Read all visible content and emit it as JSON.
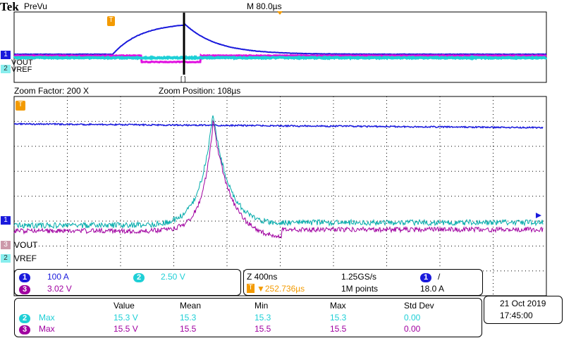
{
  "header": {
    "brand": "Tek",
    "mode": "PreVu",
    "timebase": "M 80.0µs"
  },
  "preview": {
    "ch1_label": "1",
    "vout_label": "VOUT",
    "ch2_label": "2",
    "vref_label": "VREF",
    "trigger_marker": "T",
    "zoom_marker": "[ ]"
  },
  "zoom_info": {
    "factor": "Zoom Factor: 200 X",
    "position": "Zoom Position: 108µs"
  },
  "main": {
    "trigger_marker": "T",
    "ch1_label": "1",
    "ch3_label": "3",
    "vout_label": "VOUT",
    "ch2_label": "2",
    "vref_label": "VREF"
  },
  "channels": [
    {
      "num": "1",
      "scale": "100 A",
      "color": "#1a1adc"
    },
    {
      "num": "2",
      "scale": "2.50 V",
      "color": "#1ecfd6"
    },
    {
      "num": "3",
      "scale": "3.02 V",
      "color": "#a000a0"
    }
  ],
  "acquisition": {
    "zoom_time": "Z 400ns",
    "sample_rate": "1.25GS/s",
    "trigger_pos": "▼252.736µs",
    "trigger_icon": "T",
    "record": "1M points",
    "trig_channel": "1",
    "trig_slope": "/",
    "trig_level": "18.0 A"
  },
  "measurements": {
    "headers": [
      "Value",
      "Mean",
      "Min",
      "Max",
      "Std Dev"
    ],
    "rows": [
      {
        "ch": "2",
        "name": "Max",
        "value": "15.3 V",
        "mean": "15.3",
        "min": "15.3",
        "max": "15.3",
        "std": "0.00",
        "color": "#1ecfd6"
      },
      {
        "ch": "3",
        "name": "Max",
        "value": "15.5 V",
        "mean": "15.5",
        "min": "15.5",
        "max": "15.5",
        "std": "0.00",
        "color": "#a000a0"
      }
    ]
  },
  "datetime": {
    "date": "21 Oct  2019",
    "time": "17:45:00"
  },
  "colors": {
    "trigger": "#f39a00",
    "ch1": "#1a1adc",
    "ch2": "#1ecfd6",
    "ch3": "#a000a0"
  }
}
